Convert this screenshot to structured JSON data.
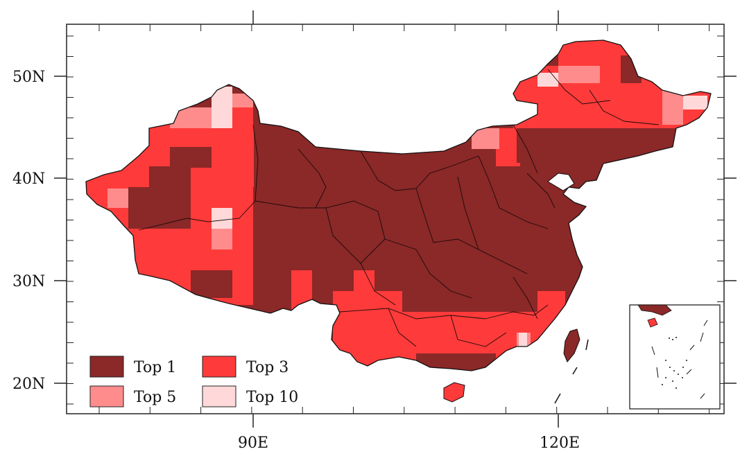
{
  "map": {
    "x_tick_labels": [
      "90E",
      "120E"
    ],
    "y_tick_labels": [
      "50N",
      "40N",
      "30N",
      "20N"
    ],
    "legend": [
      {
        "label": "Top 1",
        "color": "#8b2828"
      },
      {
        "label": "Top 3",
        "color": "#ff3a3a"
      },
      {
        "label": "Top 5",
        "color": "#ff8c8c"
      },
      {
        "label": "Top 10",
        "color": "#ffd9d9"
      }
    ],
    "colors": {
      "top1": "#8b2828",
      "top3": "#ff3a3a",
      "top5": "#ff8c8c",
      "top10": "#ffd9d9",
      "frame": "#222222"
    }
  }
}
